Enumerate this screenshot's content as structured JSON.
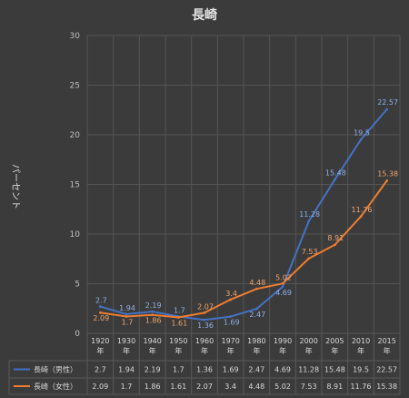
{
  "chart_data": {
    "type": "line",
    "title": "長崎",
    "ylabel": "パーセント",
    "ylim": [
      0,
      30
    ],
    "yticks": [
      0,
      5,
      10,
      15,
      20,
      25,
      30
    ],
    "grid": true,
    "legend": "bottom (data table)",
    "categories": [
      "1920 年",
      "1930 年",
      "1940 年",
      "1950 年",
      "1960 年",
      "1970 年",
      "1980 年",
      "1990 年",
      "2000 年",
      "2005 年",
      "2010 年",
      "2015 年"
    ],
    "series": [
      {
        "name": "長崎（男性）",
        "color": "#4472c4",
        "values": [
          2.7,
          1.94,
          2.19,
          1.7,
          1.36,
          1.69,
          2.47,
          4.69,
          11.28,
          15.48,
          19.5,
          22.57
        ],
        "labels": [
          "2.7",
          "1.94",
          "2.19",
          "1.7",
          "1.36",
          "1.69",
          "2.47",
          "4.69",
          "11.28",
          "15.48",
          "19.5",
          "22.57"
        ]
      },
      {
        "name": "長崎（女性）",
        "color": "#ed7d31",
        "values": [
          2.09,
          1.7,
          1.86,
          1.61,
          2.07,
          3.4,
          4.48,
          5.02,
          7.53,
          8.91,
          11.76,
          15.38
        ],
        "labels": [
          "2.09",
          "1.7",
          "1.86",
          "1.61",
          "2.07",
          "3.4",
          "4.48",
          "5.02",
          "7.53",
          "8.91",
          "11.76",
          "15.38"
        ]
      }
    ]
  }
}
